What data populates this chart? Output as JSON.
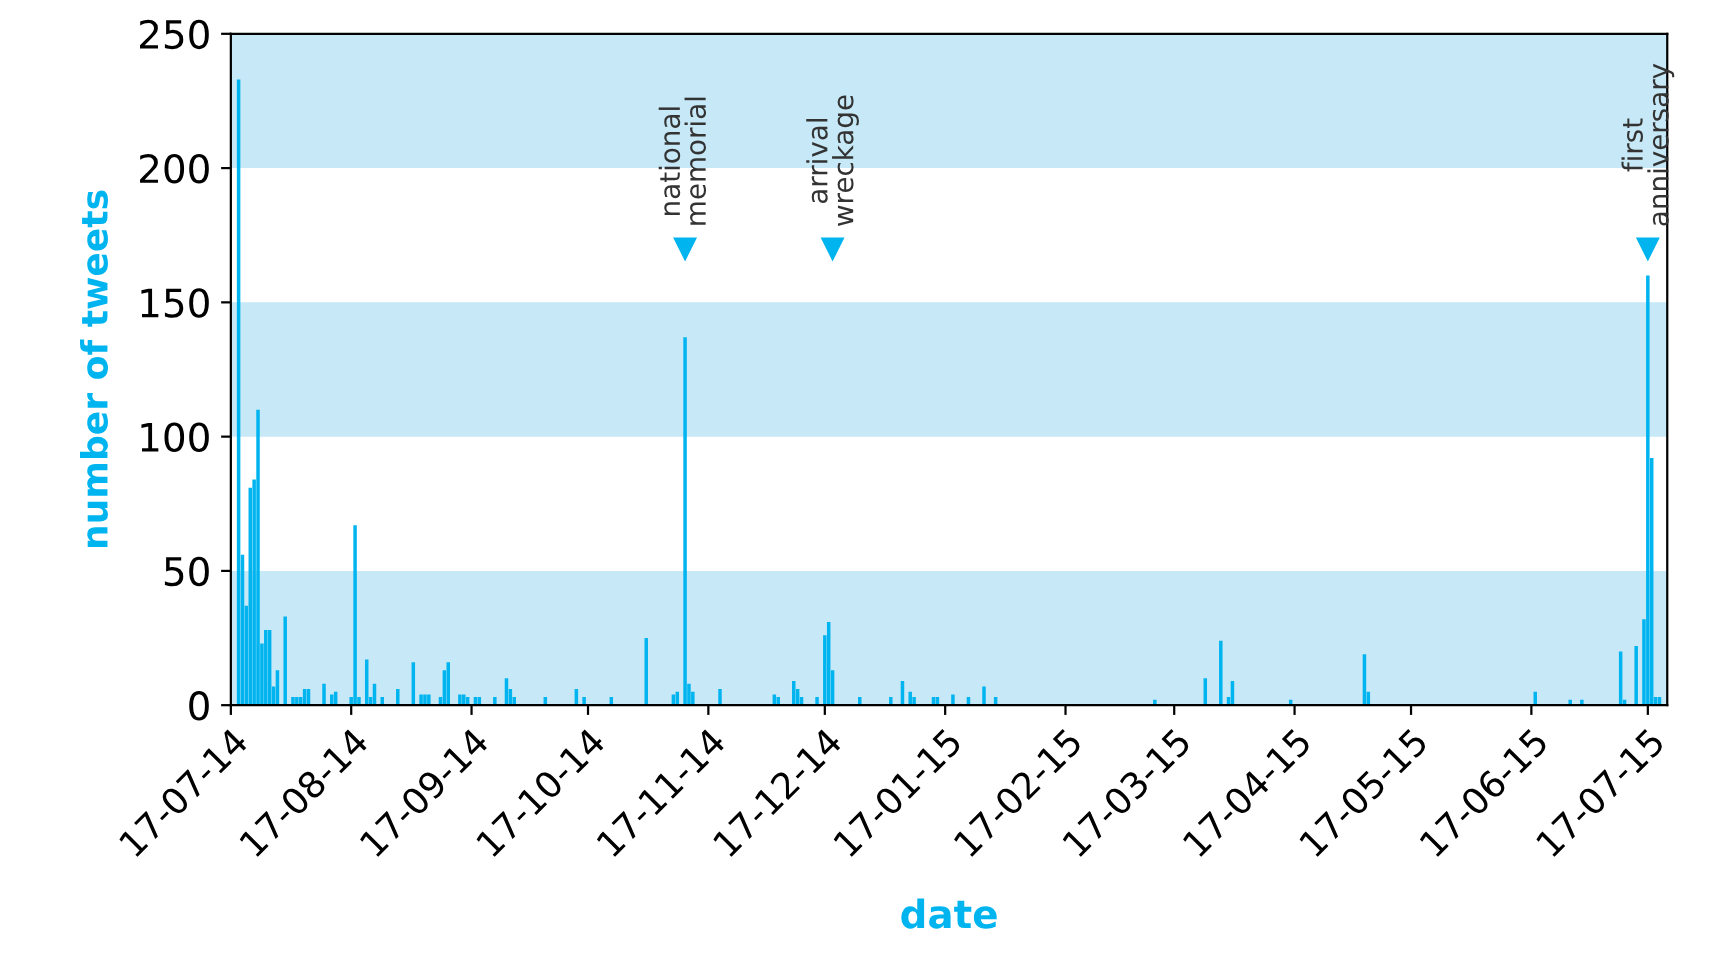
{
  "chart_data": {
    "type": "bar",
    "xlabel": "date",
    "ylabel": "number of tweets",
    "x": [
      "2014-07-19",
      "2014-07-20",
      "2014-07-21",
      "2014-07-22",
      "2014-07-23",
      "2014-07-24",
      "2014-07-25",
      "2014-07-26",
      "2014-07-27",
      "2014-07-28",
      "2014-07-29",
      "2014-07-31",
      "2014-08-02",
      "2014-08-03",
      "2014-08-04",
      "2014-08-05",
      "2014-08-06",
      "2014-08-10",
      "2014-08-12",
      "2014-08-13",
      "2014-08-17",
      "2014-08-18",
      "2014-08-19",
      "2014-08-21",
      "2014-08-22",
      "2014-08-23",
      "2014-08-25",
      "2014-08-29",
      "2014-09-02",
      "2014-09-04",
      "2014-09-05",
      "2014-09-06",
      "2014-09-09",
      "2014-09-10",
      "2014-09-11",
      "2014-09-14",
      "2014-09-15",
      "2014-09-16",
      "2014-09-18",
      "2014-09-19",
      "2014-09-23",
      "2014-09-26",
      "2014-09-27",
      "2014-09-28",
      "2014-10-06",
      "2014-10-14",
      "2014-10-16",
      "2014-10-23",
      "2014-11-01",
      "2014-11-08",
      "2014-11-09",
      "2014-11-11",
      "2014-11-12",
      "2014-11-13",
      "2014-11-20",
      "2014-12-04",
      "2014-12-05",
      "2014-12-09",
      "2014-12-10",
      "2014-12-11",
      "2014-12-15",
      "2014-12-17",
      "2014-12-18",
      "2014-12-19",
      "2014-12-26",
      "2015-01-03",
      "2015-01-06",
      "2015-01-08",
      "2015-01-09",
      "2015-01-14",
      "2015-01-15",
      "2015-01-19",
      "2015-01-23",
      "2015-01-27",
      "2015-01-30",
      "2015-03-12",
      "2015-03-25",
      "2015-03-29",
      "2015-03-31",
      "2015-04-01",
      "2015-04-16",
      "2015-05-05",
      "2015-05-06",
      "2015-06-18",
      "2015-06-27",
      "2015-06-30",
      "2015-07-10",
      "2015-07-11",
      "2015-07-14",
      "2015-07-16",
      "2015-07-17",
      "2015-07-18",
      "2015-07-19",
      "2015-07-20"
    ],
    "values": [
      233,
      56,
      37,
      81,
      84,
      110,
      23,
      28,
      28,
      7,
      13,
      33,
      3,
      3,
      3,
      6,
      6,
      8,
      4,
      5,
      3,
      67,
      3,
      17,
      3,
      8,
      3,
      6,
      16,
      4,
      4,
      4,
      3,
      13,
      16,
      4,
      4,
      3,
      3,
      3,
      3,
      10,
      6,
      3,
      3,
      6,
      3,
      3,
      25,
      4,
      5,
      137,
      8,
      5,
      6,
      4,
      3,
      9,
      6,
      3,
      3,
      26,
      31,
      13,
      3,
      3,
      9,
      5,
      3,
      3,
      3,
      4,
      3,
      7,
      3,
      2,
      10,
      24,
      3,
      9,
      2,
      19,
      5,
      5,
      2,
      2,
      20,
      2,
      22,
      32,
      160,
      92,
      3,
      3
    ],
    "color": "#00b4ef",
    "xlim": [
      "2014-07-17",
      "2015-07-22"
    ],
    "xticks": [
      {
        "value": "2014-07-17",
        "label": "17-07-14"
      },
      {
        "value": "2014-08-17",
        "label": "17-08-14"
      },
      {
        "value": "2014-09-17",
        "label": "17-09-14"
      },
      {
        "value": "2014-10-17",
        "label": "17-10-14"
      },
      {
        "value": "2014-11-17",
        "label": "17-11-14"
      },
      {
        "value": "2014-12-17",
        "label": "17-12-14"
      },
      {
        "value": "2015-01-17",
        "label": "17-01-15"
      },
      {
        "value": "2015-02-17",
        "label": "17-02-15"
      },
      {
        "value": "2015-03-17",
        "label": "17-03-15"
      },
      {
        "value": "2015-04-17",
        "label": "17-04-15"
      },
      {
        "value": "2015-05-17",
        "label": "17-05-15"
      },
      {
        "value": "2015-06-17",
        "label": "17-06-15"
      },
      {
        "value": "2015-07-17",
        "label": "17-07-15"
      }
    ],
    "ylim": [
      0,
      250
    ],
    "yticks": [
      0,
      50,
      100,
      150,
      200,
      250
    ],
    "bands": [
      {
        "axis": "y",
        "from": 0,
        "to": 50,
        "color": "#c6e8f7"
      },
      {
        "axis": "y",
        "from": 100,
        "to": 150,
        "color": "#c6e8f7"
      },
      {
        "axis": "y",
        "from": 200,
        "to": 250,
        "color": "#c6e8f7"
      }
    ],
    "annotations": [
      {
        "text": "national\nmemorial",
        "x": "2014-11-11",
        "y": 170
      },
      {
        "text": "arrival\nwreckage",
        "x": "2014-12-19",
        "y": 170
      },
      {
        "text": "first\nanniversary",
        "x": "2015-07-17",
        "y": 170
      }
    ],
    "grid": false,
    "legend": false
  }
}
